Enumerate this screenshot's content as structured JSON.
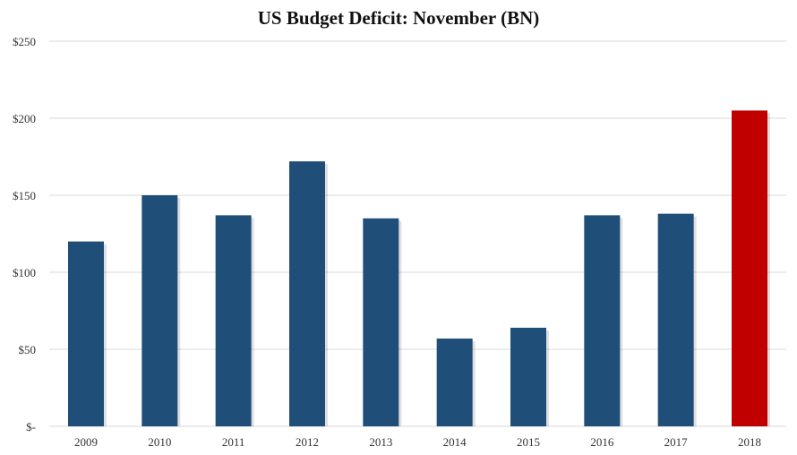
{
  "chart_data": {
    "type": "bar",
    "title": "US Budget Deficit: November (BN)",
    "xlabel": "",
    "ylabel": "",
    "categories": [
      "2009",
      "2010",
      "2011",
      "2012",
      "2013",
      "2014",
      "2015",
      "2016",
      "2017",
      "2018"
    ],
    "values": [
      120,
      150,
      137,
      172,
      135,
      57,
      64,
      137,
      138,
      205
    ],
    "ylim": [
      0,
      250
    ],
    "yticks": [
      0,
      50,
      100,
      150,
      200,
      250
    ],
    "ytick_labels": [
      "$-",
      "$50",
      "$100",
      "$150",
      "$200",
      "$250"
    ],
    "grid": true,
    "legend": "none",
    "colors": {
      "default_bar": "#1f4e79",
      "highlight_bar": "#c00000",
      "grid": "#d9d9d9"
    },
    "highlight_category": "2018"
  }
}
